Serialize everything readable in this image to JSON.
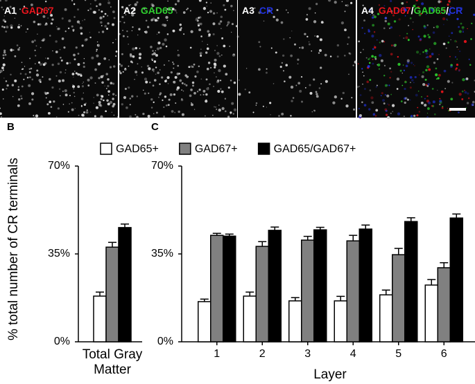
{
  "panels": [
    {
      "label": "A1",
      "stain": [
        {
          "text": "GAD67",
          "color": "#e8141c"
        }
      ]
    },
    {
      "label": "A2",
      "stain": [
        {
          "text": "GAD65",
          "color": "#2ecc2e"
        }
      ]
    },
    {
      "label": "A3",
      "stain": [
        {
          "text": "CR",
          "color": "#2233dd"
        }
      ]
    },
    {
      "label": "A4",
      "stain": [
        {
          "text": "GAD67",
          "color": "#e8141c"
        },
        {
          "text": "/",
          "color": "#ffffff"
        },
        {
          "text": "GAD65",
          "color": "#2ecc2e"
        },
        {
          "text": "/",
          "color": "#ffffff"
        },
        {
          "text": "CR",
          "color": "#2233dd"
        }
      ]
    }
  ],
  "chart_data": [
    {
      "type": "bar",
      "panel": "B",
      "ylabel": "% total number of CR terminals",
      "categories": [
        "Total Gray Matter"
      ],
      "ylim": [
        0,
        70
      ],
      "yticks": [
        {
          "value": 0,
          "label": "0%"
        },
        {
          "value": 35,
          "label": "35%"
        },
        {
          "value": 70,
          "label": "70%"
        }
      ],
      "series": [
        {
          "color": "#ffffff",
          "values": [
            18.2
          ],
          "errors": [
            1.6
          ]
        },
        {
          "color": "#808080",
          "values": [
            37.7
          ],
          "errors": [
            1.9
          ]
        },
        {
          "color": "#000000",
          "values": [
            45.5
          ],
          "errors": [
            1.4
          ]
        }
      ]
    },
    {
      "type": "bar",
      "panel": "C",
      "xlabel": "Layer",
      "categories": [
        "1",
        "2",
        "3",
        "4",
        "5",
        "6"
      ],
      "ylim": [
        0,
        70
      ],
      "yticks": [
        {
          "value": 0,
          "label": "0%"
        },
        {
          "value": 35,
          "label": "35%"
        },
        {
          "value": 70,
          "label": "70%"
        }
      ],
      "legend": "top",
      "series": [
        {
          "name": "GAD65+",
          "color": "#ffffff",
          "values": [
            16,
            18.2,
            16.3,
            16.3,
            18.7,
            22.6
          ],
          "errors": [
            1,
            1.6,
            1.3,
            1.8,
            1.9,
            2.2
          ]
        },
        {
          "name": "GAD67+",
          "color": "#808080",
          "values": [
            42.4,
            38,
            40.5,
            40.2,
            34.7,
            29.5
          ],
          "errors": [
            0.8,
            1.9,
            1.5,
            2.2,
            2.5,
            2
          ]
        },
        {
          "name": "GAD65/GAD67+",
          "color": "#000000",
          "values": [
            42.1,
            44.4,
            44.6,
            44.9,
            47.9,
            49.3
          ],
          "errors": [
            0.8,
            1.3,
            1,
            1.6,
            1.5,
            1.6
          ]
        }
      ]
    }
  ]
}
